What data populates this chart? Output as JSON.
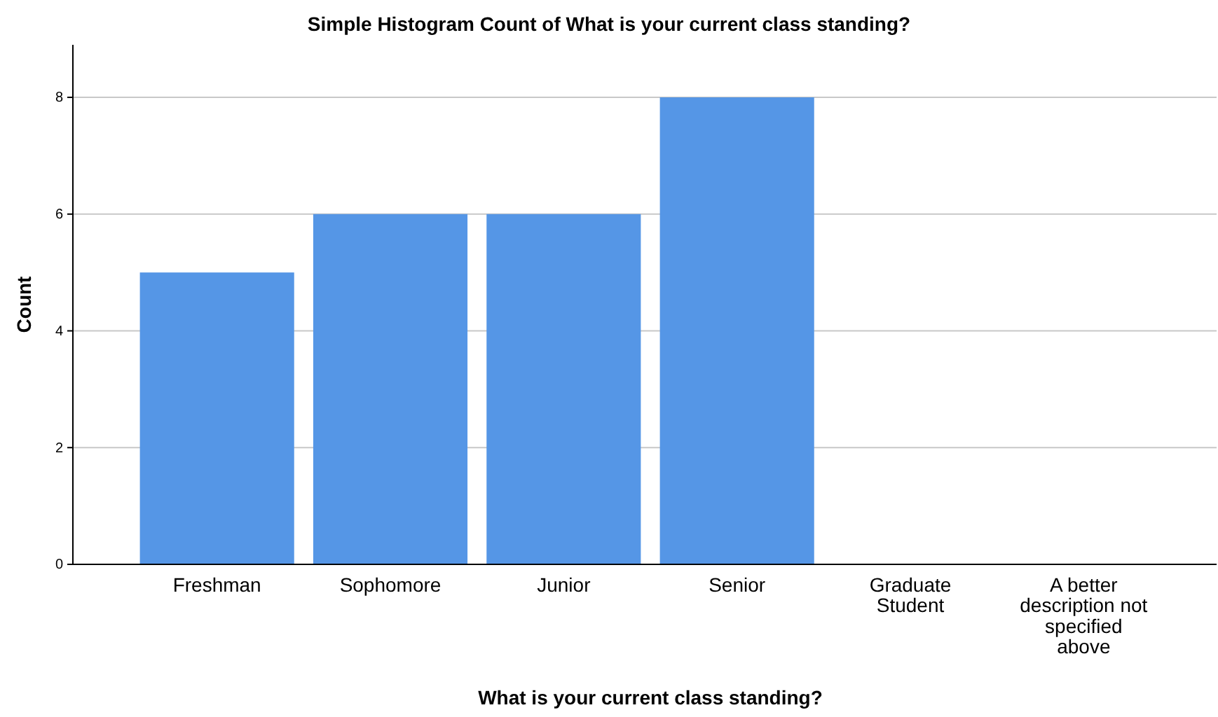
{
  "chart_data": {
    "type": "bar",
    "title": "Simple Histogram Count of What is your current class standing?",
    "xlabel": "What is your current class standing?",
    "ylabel": "Count",
    "categories": [
      "Freshman",
      "Sophomore",
      "Junior",
      "Senior",
      "Graduate Student",
      "A better description not specified above"
    ],
    "values": [
      5,
      6,
      6,
      8,
      0,
      0
    ],
    "color": "#5596e6",
    "ylim": [
      0,
      8.9
    ],
    "yticks": [
      0,
      2,
      4,
      6,
      8
    ],
    "grid": "y"
  }
}
